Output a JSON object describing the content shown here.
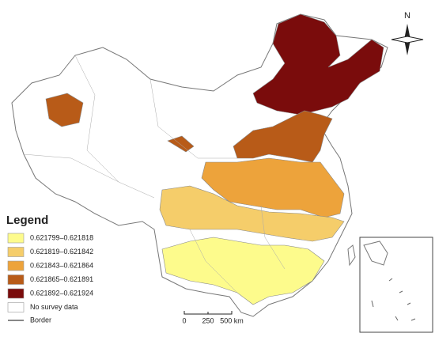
{
  "north_arrow": {
    "label": "N"
  },
  "legend": {
    "title": "Legend",
    "items": [
      {
        "label": "0.621799–0.621818",
        "color": "#fdfb8c"
      },
      {
        "label": "0.621819–0.621842",
        "color": "#f5cd6a"
      },
      {
        "label": "0.621843–0.621864",
        "color": "#eda33b"
      },
      {
        "label": "0.621865–0.621891",
        "color": "#b85b18"
      },
      {
        "label": "0.621892–0.621924",
        "color": "#7a0c0c"
      },
      {
        "label": "No survey data",
        "color": "#ffffff"
      }
    ],
    "border_label": "Border"
  },
  "scale_bar": {
    "labels": [
      "0",
      "250",
      "500 km"
    ]
  }
}
